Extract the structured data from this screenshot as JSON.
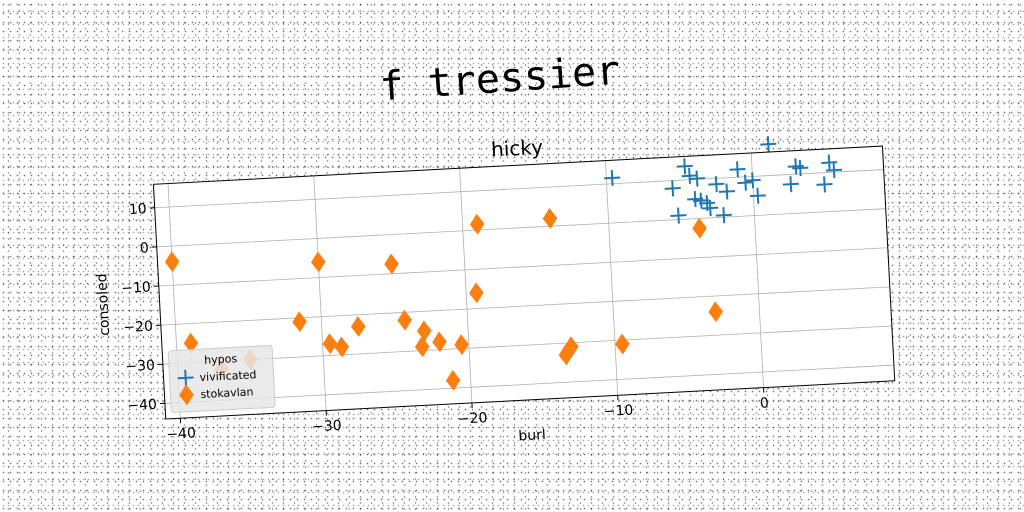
{
  "chart_data": {
    "type": "scatter",
    "suptitle": "f tressier",
    "title": "hicky",
    "xlabel": "burl",
    "ylabel": "consoled",
    "xlim": [
      -41,
      9
    ],
    "ylim": [
      -44,
      16
    ],
    "xticks": [
      -40,
      -30,
      -20,
      -10,
      0
    ],
    "yticks": [
      10,
      0,
      -10,
      -20,
      -30,
      -40
    ],
    "grid": true,
    "legend": {
      "title": "hypos",
      "placement": "lower-left"
    },
    "series": [
      {
        "name": "vivificated",
        "marker": "plus",
        "color": "#1f77b4",
        "points": [
          [
            1.2,
            18.0
          ],
          [
            -9.6,
            11.5
          ],
          [
            -4.6,
            13.5
          ],
          [
            -4.3,
            11.0
          ],
          [
            -3.8,
            10.2
          ],
          [
            -1.0,
            12.0
          ],
          [
            -2.5,
            8.5
          ],
          [
            -1.8,
            6.5
          ],
          [
            -0.5,
            8.5
          ],
          [
            0.0,
            9.0
          ],
          [
            3.0,
            12.0
          ],
          [
            3.3,
            11.5
          ],
          [
            5.3,
            12.5
          ],
          [
            5.6,
            10.5
          ],
          [
            -5.5,
            8.0
          ],
          [
            2.6,
            7.5
          ],
          [
            4.9,
            7.0
          ],
          [
            0.3,
            5.0
          ],
          [
            -4.0,
            5.0
          ],
          [
            -3.6,
            4.5
          ],
          [
            -3.2,
            3.8
          ],
          [
            -5.2,
            1.0
          ],
          [
            -2.1,
            0.5
          ],
          [
            -3.0,
            2.5
          ]
        ]
      },
      {
        "name": "stokavlan",
        "marker": "diamond",
        "color": "#ff7f0e",
        "points": [
          [
            -40.0,
            -4.0
          ],
          [
            -39.0,
            -25.0
          ],
          [
            -37.0,
            -32.0
          ],
          [
            -35.0,
            -30.0
          ],
          [
            -31.5,
            -21.0
          ],
          [
            -30.0,
            -6.0
          ],
          [
            -29.5,
            -27.0
          ],
          [
            -28.7,
            -28.0
          ],
          [
            -27.5,
            -23.0
          ],
          [
            -25.0,
            -7.5
          ],
          [
            -24.3,
            -22.0
          ],
          [
            -23.0,
            -25.0
          ],
          [
            -23.2,
            -29.0
          ],
          [
            -22.0,
            -28.0
          ],
          [
            -21.2,
            -38.0
          ],
          [
            -20.5,
            -29.0
          ],
          [
            -19.3,
            -16.0
          ],
          [
            -19.0,
            1.5
          ],
          [
            -14.0,
            2.0
          ],
          [
            -13.4,
            -33.0
          ],
          [
            -13.0,
            -31.0
          ],
          [
            -9.5,
            -31.0
          ],
          [
            -3.8,
            -2.5
          ],
          [
            -3.0,
            -24.0
          ]
        ]
      }
    ]
  }
}
